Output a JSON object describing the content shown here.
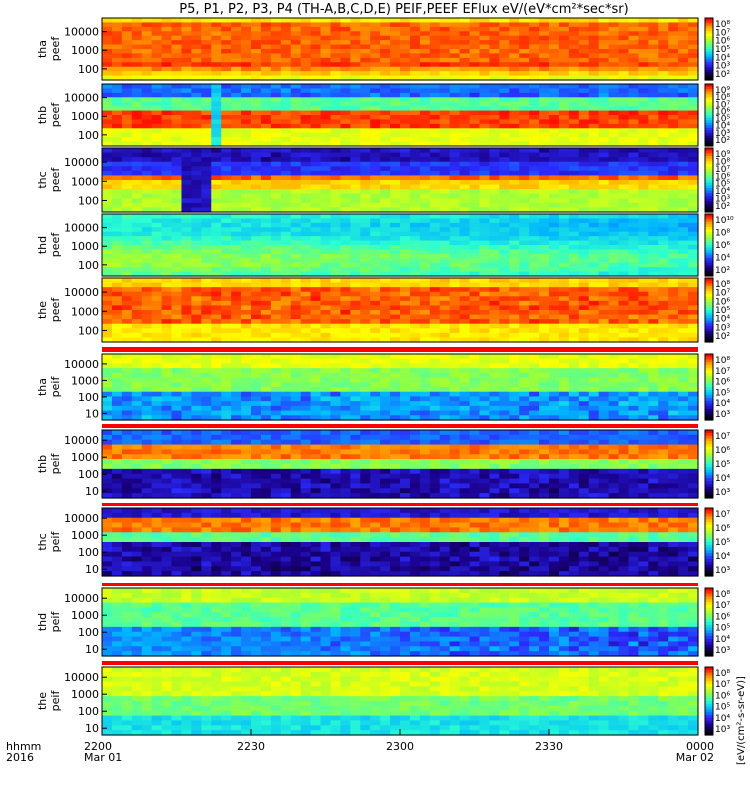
{
  "chart_data": {
    "type": "heatmap",
    "title": "P5, P1, P2, P3, P4 (TH-A,B,C,D,E) PEIF,PEEF EFlux eV/(eV*cm²*sec*sr)",
    "xaxis": {
      "corner_label_1": "hhmm",
      "corner_label_2": "2016",
      "ticks": [
        {
          "time": "2200",
          "date": "Mar 01"
        },
        {
          "time": "2230",
          "date": ""
        },
        {
          "time": "2300",
          "date": ""
        },
        {
          "time": "2330",
          "date": ""
        },
        {
          "time": "0000",
          "date": "Mar 02"
        }
      ],
      "range": [
        "2016-03-01 22:00",
        "2016-03-02 00:00"
      ]
    },
    "colorbar_label": "[eV/(cm²-s-sr-eV)]",
    "colormap": [
      "#000000",
      "#1a0088",
      "#2b2bff",
      "#00b4ff",
      "#2bffd0",
      "#9aff3a",
      "#ffff00",
      "#ff9a00",
      "#ff0000"
    ],
    "panels": [
      {
        "id": "tha-peef",
        "probe": "tha",
        "product": "peef",
        "y_ticks": [
          "10000",
          "1000",
          "100"
        ],
        "y_scale": "log",
        "colorbar_ticks": [
          "10⁸",
          "10⁷",
          "10⁶",
          "10⁵",
          "10⁴",
          "10³",
          "10²"
        ]
      },
      {
        "id": "thb-peef",
        "probe": "thb",
        "product": "peef",
        "y_ticks": [
          "10000",
          "1000",
          "100"
        ],
        "y_scale": "log",
        "colorbar_ticks": [
          "10⁹",
          "10⁸",
          "10⁷",
          "10⁶",
          "10⁵",
          "10⁴",
          "10³",
          "10²"
        ]
      },
      {
        "id": "thc-peef",
        "probe": "thc",
        "product": "peef",
        "y_ticks": [
          "10000",
          "1000",
          "100"
        ],
        "y_scale": "log",
        "colorbar_ticks": [
          "10⁹",
          "10⁸",
          "10⁷",
          "10⁶",
          "10⁵",
          "10⁴",
          "10³",
          "10²"
        ]
      },
      {
        "id": "thd-peef",
        "probe": "thd",
        "product": "peef",
        "y_ticks": [
          "10000",
          "1000",
          "100"
        ],
        "y_scale": "log",
        "colorbar_ticks": [
          "10¹⁰",
          "10⁸",
          "10⁶",
          "10⁴",
          "10²"
        ]
      },
      {
        "id": "the-peef",
        "probe": "the",
        "product": "peef",
        "y_ticks": [
          "10000",
          "1000",
          "100"
        ],
        "y_scale": "log",
        "colorbar_ticks": [
          "10⁸",
          "10⁷",
          "10⁶",
          "10⁵",
          "10⁴",
          "10³",
          "10²"
        ]
      },
      {
        "id": "tha-peif",
        "probe": "tha",
        "product": "peif",
        "y_ticks": [
          "10000",
          "1000",
          "100",
          "10"
        ],
        "y_scale": "log",
        "colorbar_ticks": [
          "10⁸",
          "10⁷",
          "10⁶",
          "10⁵",
          "10⁴",
          "10³"
        ]
      },
      {
        "id": "thb-peif",
        "probe": "thb",
        "product": "peif",
        "y_ticks": [
          "10000",
          "1000",
          "100",
          "10"
        ],
        "y_scale": "log",
        "colorbar_ticks": [
          "10⁷",
          "10⁶",
          "10⁵",
          "10⁴",
          "10³"
        ]
      },
      {
        "id": "thc-peif",
        "probe": "thc",
        "product": "peif",
        "y_ticks": [
          "10000",
          "1000",
          "100",
          "10"
        ],
        "y_scale": "log",
        "colorbar_ticks": [
          "10⁷",
          "10⁶",
          "10⁵",
          "10⁴",
          "10³"
        ]
      },
      {
        "id": "thd-peif",
        "probe": "thd",
        "product": "peif",
        "y_ticks": [
          "10000",
          "1000",
          "100",
          "10"
        ],
        "y_scale": "log",
        "colorbar_ticks": [
          "10⁸",
          "10⁷",
          "10⁶",
          "10⁵",
          "10⁴",
          "10³"
        ]
      },
      {
        "id": "the-peif",
        "probe": "the",
        "product": "peif",
        "y_ticks": [
          "10000",
          "1000",
          "100",
          "10"
        ],
        "y_scale": "log",
        "colorbar_ticks": [
          "10⁸",
          "10⁷",
          "10⁶",
          "10⁵",
          "10⁴",
          "10³"
        ]
      }
    ]
  }
}
